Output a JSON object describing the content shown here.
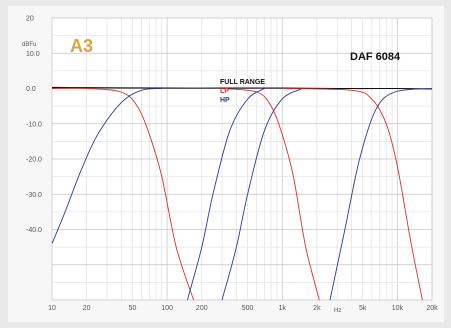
{
  "chart_data": {
    "type": "line",
    "title": "DAF 6084",
    "brand_logo": "A3",
    "ylabel": "dBFu",
    "xlabel": "Hz",
    "x_scale": "log",
    "xlim": [
      10,
      20000
    ],
    "ylim": [
      -60,
      20
    ],
    "y_ticks": [
      20,
      10,
      0,
      -10,
      -20,
      -30,
      -40
    ],
    "y_tick_labels": [
      "20",
      "10.0",
      "0.0",
      "-10.0",
      "-20.0",
      "-30.0",
      "-40.0"
    ],
    "x_ticks": [
      10,
      20,
      50,
      100,
      200,
      500,
      1000,
      2000,
      5000,
      10000,
      20000
    ],
    "x_tick_labels": [
      "10",
      "20",
      "50",
      "100",
      "200",
      "500",
      "1k",
      "2k",
      "5k",
      "10k",
      "20k"
    ],
    "grid": true,
    "legend_position": "top-center",
    "legend": [
      {
        "label": "FULL RANGE",
        "color": "#111111"
      },
      {
        "label": "LP",
        "color": "#d8322b"
      },
      {
        "label": "HP",
        "color": "#2b3a9a"
      }
    ],
    "series": [
      {
        "name": "FULL RANGE",
        "color": "#111111",
        "x": [
          10,
          30,
          100,
          300,
          1000,
          3000,
          10000,
          20000
        ],
        "y": [
          0.3,
          0.2,
          0.1,
          0.1,
          0.1,
          0.0,
          0.0,
          -0.1
        ]
      },
      {
        "name": "LP",
        "color": "#d8322b",
        "x": [
          10,
          20,
          40,
          55,
          70,
          90,
          120,
          170
        ],
        "y": [
          0,
          0,
          -1,
          -5,
          -13,
          -25,
          -45,
          -60
        ]
      },
      {
        "name": "HP",
        "color": "#2b3a9a",
        "x": [
          10,
          13,
          18,
          25,
          40,
          60,
          90
        ],
        "y": [
          -44,
          -35,
          -23,
          -13,
          -4,
          -0.5,
          0
        ]
      },
      {
        "name": "LP",
        "color": "#d8322b",
        "x": [
          300,
          600,
          800,
          1000,
          1250,
          1600,
          2100
        ],
        "y": [
          0,
          -1,
          -5,
          -13,
          -25,
          -45,
          -60
        ]
      },
      {
        "name": "HP",
        "color": "#2b3a9a",
        "x": [
          150,
          200,
          250,
          350,
          500,
          700
        ],
        "y": [
          -60,
          -45,
          -30,
          -12,
          -3,
          0
        ]
      },
      {
        "name": "HP",
        "color": "#2b3a9a",
        "x": [
          300,
          400,
          500,
          700,
          1000,
          1500
        ],
        "y": [
          -60,
          -45,
          -30,
          -12,
          -3,
          0
        ]
      },
      {
        "name": "LP",
        "color": "#d8322b",
        "x": [
          1000,
          4000,
          6000,
          8000,
          10000,
          13000,
          16500
        ],
        "y": [
          0,
          -0.5,
          -3,
          -10,
          -22,
          -43,
          -60
        ]
      },
      {
        "name": "HP",
        "color": "#2b3a9a",
        "x": [
          2600,
          3500,
          4700,
          6500,
          9500,
          20000
        ],
        "y": [
          -60,
          -40,
          -20,
          -6,
          -1,
          0
        ]
      }
    ]
  }
}
